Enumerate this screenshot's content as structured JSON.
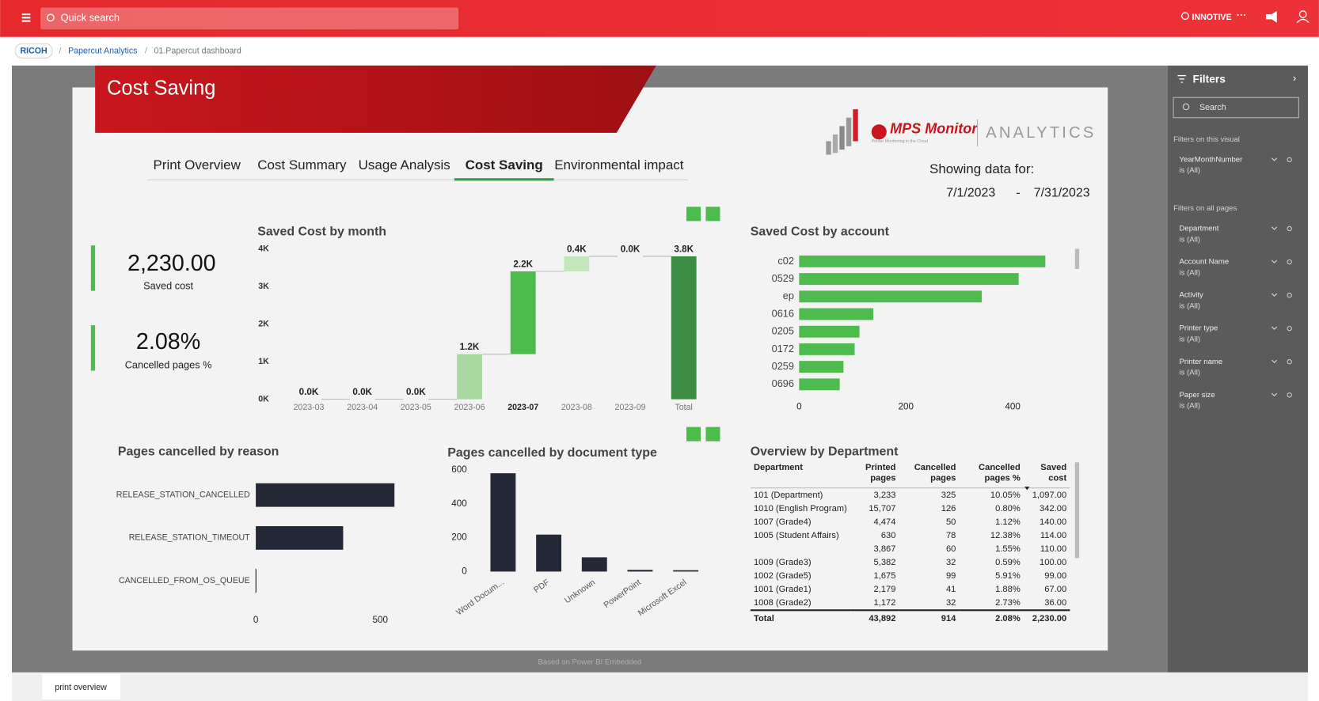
{
  "topbar": {
    "search": "Quick search",
    "user": "INNOTIVE"
  },
  "breadcrumb": [
    "RICOH",
    "Papercut Analytics",
    "01.Papercut dashboard"
  ],
  "report": {
    "title": "Cost Saving",
    "tabs": [
      "Print Overview",
      "Cost Summary",
      "Usage Analysis",
      "Cost Saving",
      "Environmental impact"
    ],
    "active_tab": 3,
    "logo": {
      "brand": "MPS Monitor",
      "tagline": "Printer Monitoring in the Cloud",
      "product": "ANALYTICS"
    },
    "showing": {
      "label": "Showing data for:",
      "from": "7/1/2023",
      "separator": "-",
      "to": "7/31/2023"
    },
    "kpis": [
      {
        "value": "2,230.00",
        "label": "Saved cost"
      },
      {
        "value": "2.08%",
        "label": "Cancelled pages %"
      }
    ],
    "saved_by_month": {
      "type": "waterfall",
      "title": "Saved Cost by month",
      "categories": [
        "2023-03",
        "2023-04",
        "2023-05",
        "2023-06",
        "2023-07",
        "2023-08",
        "2023-09",
        "Total"
      ],
      "values": [
        0,
        0,
        0,
        1200,
        2200,
        400,
        0,
        3800
      ],
      "value_labels": [
        "0.0K",
        "0.0K",
        "0.0K",
        "1.2K",
        "2.2K",
        "0.4K",
        "0.0K",
        "3.8K"
      ],
      "colors": [
        "#5cb85c",
        "#5cb85c",
        "#5cb85c",
        "#a9d9a0",
        "#4dbb4d",
        "#c4e6bd",
        "#5cb85c",
        "#3c8c44"
      ],
      "total_bar": true,
      "selected_index": 4,
      "ylim": [
        0,
        4000
      ],
      "yticks": [
        {
          "value": 0,
          "label": "0K"
        },
        {
          "value": 1000,
          "label": "1K"
        },
        {
          "value": 2000,
          "label": "2K"
        },
        {
          "value": 3000,
          "label": "3K"
        },
        {
          "value": 4000,
          "label": "4K"
        }
      ]
    },
    "saved_by_account": {
      "type": "hbar",
      "title": "Saved Cost by account",
      "color": "#4dbb4d",
      "categories": [
        "c02",
        "0529",
        "ep",
        "0616",
        "0205",
        "0172",
        "0259",
        "0696"
      ],
      "values": [
        461,
        411,
        342,
        139,
        113,
        104,
        83,
        76
      ],
      "xlim": [
        0,
        490
      ],
      "xticks": [
        0,
        200,
        400
      ]
    },
    "cancelled_by_reason": {
      "type": "hbar",
      "title": "Pages cancelled by reason",
      "color": "#252836",
      "categories": [
        "RELEASE_STATION_CANCELLED",
        "RELEASE_STATION_TIMEOUT",
        "CANCELLED_FROM_OS_QUEUE"
      ],
      "values": [
        557,
        351,
        3
      ],
      "xlim": [
        0,
        560
      ],
      "xticks": [
        0,
        500
      ]
    },
    "cancelled_by_doctype": {
      "type": "bar",
      "title": "Pages cancelled by document type",
      "color": "#252836",
      "categories": [
        "Word Docum...",
        "PDF",
        "Unknown",
        "PowerPoint",
        "Microsoft Excel"
      ],
      "values": [
        580,
        218,
        84,
        10,
        8
      ],
      "ylim": [
        0,
        600
      ],
      "yticks": [
        0,
        200,
        400,
        600
      ]
    },
    "department_table": {
      "title": "Overview by Department",
      "columns": [
        "Department",
        "Printed pages",
        "Cancelled pages",
        "Cancelled pages %",
        "Saved cost"
      ],
      "rows": [
        [
          "101 (Department)",
          "3,233",
          "325",
          "10.05%",
          "1,097.00"
        ],
        [
          "1010 (English Program)",
          "15,707",
          "126",
          "0.80%",
          "342.00"
        ],
        [
          "1007 (Grade4)",
          "4,474",
          "50",
          "1.12%",
          "140.00"
        ],
        [
          "1005 (Student Affairs)",
          "630",
          "78",
          "12.38%",
          "114.00"
        ],
        [
          null,
          "3,867",
          "60",
          "1.55%",
          "110.00"
        ],
        [
          "1009 (Grade3)",
          "5,382",
          "32",
          "0.59%",
          "100.00"
        ],
        [
          "1002 (Grade5)",
          "1,675",
          "99",
          "5.91%",
          "99.00"
        ],
        [
          "1001 (Grade1)",
          "2,179",
          "41",
          "1.88%",
          "67.00"
        ],
        [
          "1008 (Grade2)",
          "1,172",
          "32",
          "2.73%",
          "36.00"
        ]
      ],
      "total": [
        "Total",
        "43,892",
        "914",
        "2.08%",
        "2,230.00"
      ]
    }
  },
  "filters": {
    "title": "Filters",
    "search": "Search",
    "visual_heading": "Filters on this visual",
    "visual_filters": [
      {
        "name": "YearMonthNumber",
        "state": "is (All)"
      }
    ],
    "page_heading": "Filters on all pages",
    "page_filters": [
      {
        "name": "Department",
        "state": "is (All)"
      },
      {
        "name": "Account Name",
        "state": "is (All)"
      },
      {
        "name": "Activity",
        "state": "is (All)"
      },
      {
        "name": "Printer type",
        "state": "is (All)"
      },
      {
        "name": "Printer name",
        "state": "is (All)"
      },
      {
        "name": "Paper size",
        "state": "is (All)"
      }
    ]
  },
  "footer": {
    "note": "Based on Power BI Embedded",
    "page_tab": "print overview"
  }
}
